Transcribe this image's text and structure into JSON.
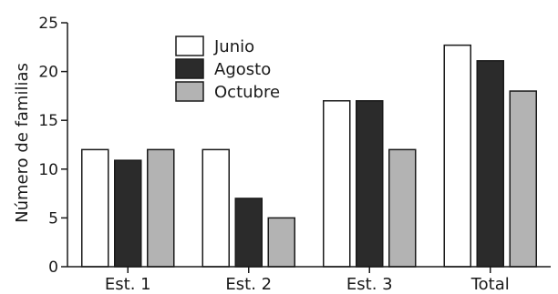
{
  "chart_data": {
    "type": "bar",
    "title": "",
    "xlabel": "",
    "ylabel": "Número de familias",
    "ylim": [
      0,
      25
    ],
    "yticks": [
      0,
      5,
      10,
      15,
      20,
      25
    ],
    "categories": [
      "Est. 1",
      "Est. 2",
      "Est. 3",
      "Total"
    ],
    "series": [
      {
        "name": "Junio",
        "values": [
          12,
          12,
          17,
          22.7
        ],
        "color": "#ffffff"
      },
      {
        "name": "Agosto",
        "values": [
          10.9,
          7,
          17,
          21.1
        ],
        "color": "#2b2b2b"
      },
      {
        "name": "Octubre",
        "values": [
          12,
          5,
          12,
          18
        ],
        "color": "#b3b3b3"
      }
    ],
    "grid": false,
    "legend_position": "top-left"
  }
}
